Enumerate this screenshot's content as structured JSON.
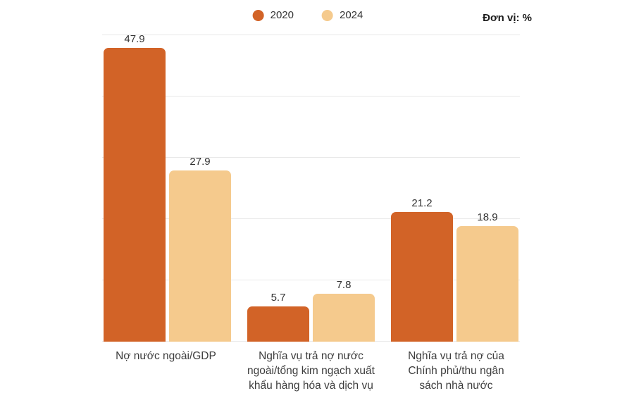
{
  "header": {
    "unit_label": "Đơn vị: %"
  },
  "chart_data": {
    "type": "bar",
    "title": "",
    "unit": "%",
    "categories": [
      "Nợ nước ngoài/GDP",
      "Nghĩa vụ trả nợ nước\nngoài/tổng kim ngạch xuất\nkhẩu hàng hóa và dịch vụ",
      "Nghĩa vụ trả nợ của\nChính phủ/thu ngân\nsách nhà nước"
    ],
    "series": [
      {
        "name": "2020",
        "color": "#D26327",
        "values": [
          47.9,
          5.7,
          21.2
        ]
      },
      {
        "name": "2024",
        "color": "#F5CA8D",
        "values": [
          27.9,
          7.8,
          18.9
        ]
      }
    ],
    "ylim": [
      0,
      50
    ],
    "grid_step": 10,
    "grid_color": "#e9e9e9",
    "grid": true,
    "legend_position": "top-center",
    "value_labels": true,
    "value_label_color": "#333333",
    "category_label_color": "#3d3d3d",
    "background_color": "#ffffff"
  }
}
